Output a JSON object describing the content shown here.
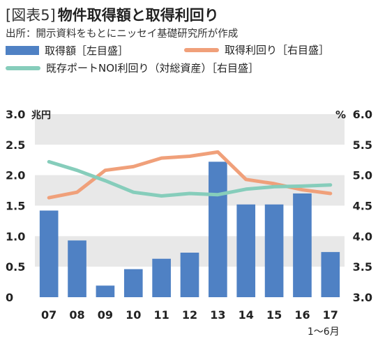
{
  "header": {
    "tag": "[図表5]",
    "title": "物件取得額と取得利回り",
    "source": "出所：開示資料をもとにニッセイ基礎研究所が作成"
  },
  "colors": {
    "bar": "#4f81c4",
    "acq_yield": "#f0a07a",
    "noi_yield": "#86cdbb",
    "band": "#e8e8e8"
  },
  "chart_data": {
    "type": "bar",
    "categories": [
      "07",
      "08",
      "09",
      "10",
      "11",
      "12",
      "13",
      "14",
      "15",
      "16",
      "17"
    ],
    "x_sublabel": "1〜6月",
    "left_axis": {
      "unit": "兆円",
      "ticks": [
        "3.0",
        "2.5",
        "2.0",
        "1.5",
        "1.0",
        "0.5",
        "0"
      ],
      "ylim": [
        0,
        3.0
      ]
    },
    "right_axis": {
      "unit": "%",
      "ticks": [
        "6.0",
        "5.5",
        "5.0",
        "4.5",
        "4.0",
        "3.5",
        "3.0"
      ],
      "ylim": [
        3.0,
        6.0
      ]
    },
    "grid": "alternating bands",
    "series": [
      {
        "name": "取得額［左目盛］",
        "type": "bar",
        "axis": "left",
        "values": [
          1.42,
          0.93,
          0.19,
          0.46,
          0.63,
          0.73,
          2.22,
          1.52,
          1.52,
          1.7,
          0.74
        ]
      },
      {
        "name": "取得利回り［右目盛］",
        "type": "line",
        "axis": "right",
        "values": [
          4.63,
          4.72,
          5.08,
          5.14,
          5.28,
          5.31,
          5.38,
          4.93,
          4.86,
          4.76,
          4.7
        ]
      },
      {
        "name": "既存ポートNOI利回り（対総資産）［右目盛］",
        "type": "line",
        "axis": "right",
        "values": [
          5.22,
          5.08,
          4.91,
          4.72,
          4.66,
          4.7,
          4.68,
          4.77,
          4.81,
          4.82,
          4.84
        ]
      }
    ]
  }
}
